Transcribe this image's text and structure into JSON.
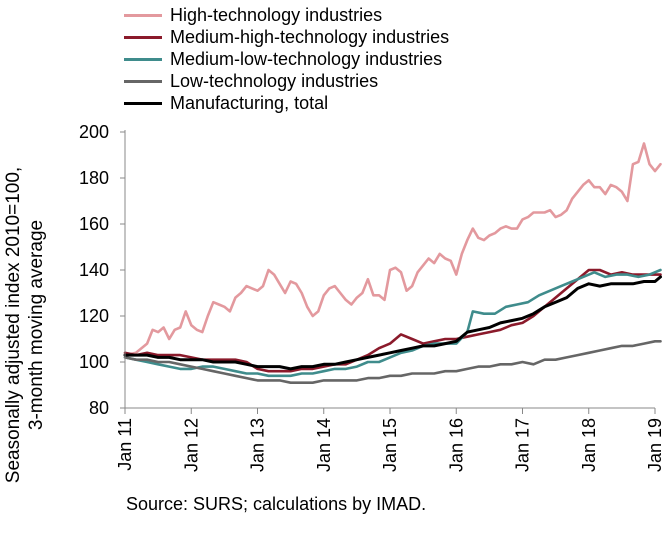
{
  "source": "Source: SURS; calculations by IMAD.",
  "chart_data": {
    "type": "line",
    "ylabel_line1": "Seasonally adjusted index 2010=100,",
    "ylabel_line2": "3-month moving average",
    "ylim": [
      80,
      200
    ],
    "yticks": [
      80,
      100,
      120,
      140,
      160,
      180,
      200
    ],
    "xticks": [
      "Jan 11",
      "Jan 12",
      "Jan 13",
      "Jan 14",
      "Jan 15",
      "Jan 16",
      "Jan 17",
      "Jan 18",
      "Jan 19"
    ],
    "x_start": "Jan 11",
    "x_end": "Jan 19",
    "frequency": "monthly",
    "legend_position": "top-left",
    "series": [
      {
        "name": "High-technology industries",
        "color": "#e3999e",
        "values": [
          [
            0,
            103
          ],
          [
            2,
            104
          ],
          [
            4,
            108
          ],
          [
            5,
            114
          ],
          [
            6,
            113
          ],
          [
            7,
            115
          ],
          [
            8,
            110
          ],
          [
            9,
            114
          ],
          [
            10,
            115
          ],
          [
            11,
            122
          ],
          [
            12,
            116
          ],
          [
            13,
            114
          ],
          [
            14,
            113
          ],
          [
            15,
            120
          ],
          [
            16,
            126
          ],
          [
            17,
            125
          ],
          [
            18,
            124
          ],
          [
            19,
            122
          ],
          [
            20,
            128
          ],
          [
            21,
            130
          ],
          [
            22,
            133
          ],
          [
            23,
            132
          ],
          [
            24,
            131
          ],
          [
            25,
            133
          ],
          [
            26,
            140
          ],
          [
            27,
            138
          ],
          [
            28,
            134
          ],
          [
            29,
            130
          ],
          [
            30,
            135
          ],
          [
            31,
            134
          ],
          [
            32,
            130
          ],
          [
            33,
            124
          ],
          [
            34,
            120
          ],
          [
            35,
            122
          ],
          [
            36,
            129
          ],
          [
            37,
            132
          ],
          [
            38,
            133
          ],
          [
            39,
            130
          ],
          [
            40,
            127
          ],
          [
            41,
            125
          ],
          [
            42,
            128
          ],
          [
            43,
            130
          ],
          [
            44,
            136
          ],
          [
            45,
            129
          ],
          [
            46,
            129
          ],
          [
            47,
            127
          ],
          [
            48,
            140
          ],
          [
            49,
            141
          ],
          [
            50,
            139
          ],
          [
            51,
            131
          ],
          [
            52,
            133
          ],
          [
            53,
            139
          ],
          [
            54,
            142
          ],
          [
            55,
            145
          ],
          [
            56,
            143
          ],
          [
            57,
            147
          ],
          [
            58,
            145
          ],
          [
            59,
            144
          ],
          [
            60,
            138
          ],
          [
            61,
            147
          ],
          [
            62,
            153
          ],
          [
            63,
            158
          ],
          [
            64,
            154
          ],
          [
            65,
            153
          ],
          [
            66,
            155
          ],
          [
            67,
            156
          ],
          [
            68,
            158
          ],
          [
            69,
            159
          ],
          [
            70,
            158
          ],
          [
            71,
            158
          ],
          [
            72,
            162
          ],
          [
            73,
            163
          ],
          [
            74,
            165
          ],
          [
            75,
            165
          ],
          [
            76,
            165
          ],
          [
            77,
            166
          ],
          [
            78,
            163
          ],
          [
            79,
            164
          ],
          [
            80,
            166
          ],
          [
            81,
            171
          ],
          [
            82,
            174
          ],
          [
            83,
            177
          ],
          [
            84,
            179
          ],
          [
            85,
            176
          ],
          [
            86,
            176
          ],
          [
            87,
            173
          ],
          [
            88,
            177
          ],
          [
            89,
            176
          ],
          [
            90,
            174
          ],
          [
            91,
            170
          ],
          [
            92,
            186
          ],
          [
            93,
            187
          ],
          [
            94,
            195
          ],
          [
            95,
            186
          ],
          [
            96,
            183
          ],
          [
            97,
            186
          ]
        ]
      },
      {
        "name": "Medium-high-technology industries",
        "color": "#8b1a2b",
        "values": [
          [
            0,
            104
          ],
          [
            2,
            103
          ],
          [
            4,
            104
          ],
          [
            6,
            103
          ],
          [
            8,
            103
          ],
          [
            10,
            103
          ],
          [
            12,
            102
          ],
          [
            14,
            101
          ],
          [
            16,
            101
          ],
          [
            18,
            101
          ],
          [
            20,
            101
          ],
          [
            22,
            100
          ],
          [
            24,
            97
          ],
          [
            26,
            96
          ],
          [
            28,
            96
          ],
          [
            30,
            96
          ],
          [
            32,
            97
          ],
          [
            34,
            97
          ],
          [
            36,
            98
          ],
          [
            38,
            99
          ],
          [
            40,
            99
          ],
          [
            42,
            101
          ],
          [
            44,
            103
          ],
          [
            46,
            106
          ],
          [
            48,
            108
          ],
          [
            50,
            112
          ],
          [
            52,
            110
          ],
          [
            54,
            108
          ],
          [
            56,
            109
          ],
          [
            58,
            110
          ],
          [
            60,
            110
          ],
          [
            62,
            111
          ],
          [
            64,
            112
          ],
          [
            66,
            113
          ],
          [
            68,
            114
          ],
          [
            70,
            116
          ],
          [
            72,
            117
          ],
          [
            74,
            120
          ],
          [
            76,
            124
          ],
          [
            78,
            128
          ],
          [
            80,
            132
          ],
          [
            82,
            136
          ],
          [
            84,
            140
          ],
          [
            86,
            140
          ],
          [
            88,
            138
          ],
          [
            90,
            139
          ],
          [
            92,
            138
          ],
          [
            94,
            138
          ],
          [
            96,
            138
          ],
          [
            97,
            138
          ]
        ]
      },
      {
        "name": "Medium-low-technology industries",
        "color": "#3f8c8c",
        "values": [
          [
            0,
            102
          ],
          [
            2,
            101
          ],
          [
            4,
            100
          ],
          [
            6,
            99
          ],
          [
            8,
            98
          ],
          [
            10,
            97
          ],
          [
            12,
            97
          ],
          [
            14,
            98
          ],
          [
            16,
            98
          ],
          [
            18,
            97
          ],
          [
            20,
            96
          ],
          [
            22,
            95
          ],
          [
            24,
            95
          ],
          [
            26,
            94
          ],
          [
            28,
            94
          ],
          [
            30,
            94
          ],
          [
            32,
            95
          ],
          [
            34,
            95
          ],
          [
            36,
            96
          ],
          [
            38,
            97
          ],
          [
            40,
            97
          ],
          [
            42,
            98
          ],
          [
            44,
            100
          ],
          [
            46,
            100
          ],
          [
            48,
            102
          ],
          [
            50,
            104
          ],
          [
            52,
            105
          ],
          [
            54,
            107
          ],
          [
            56,
            108
          ],
          [
            58,
            108
          ],
          [
            60,
            108
          ],
          [
            62,
            113
          ],
          [
            63,
            122
          ],
          [
            65,
            121
          ],
          [
            67,
            121
          ],
          [
            69,
            124
          ],
          [
            71,
            125
          ],
          [
            73,
            126
          ],
          [
            75,
            129
          ],
          [
            77,
            131
          ],
          [
            79,
            133
          ],
          [
            81,
            135
          ],
          [
            83,
            137
          ],
          [
            85,
            139
          ],
          [
            87,
            137
          ],
          [
            89,
            138
          ],
          [
            91,
            138
          ],
          [
            93,
            137
          ],
          [
            95,
            138
          ],
          [
            97,
            140
          ]
        ]
      },
      {
        "name": "Low-technology industries",
        "color": "#666666",
        "values": [
          [
            0,
            102
          ],
          [
            2,
            101
          ],
          [
            4,
            101
          ],
          [
            6,
            100
          ],
          [
            8,
            100
          ],
          [
            10,
            99
          ],
          [
            12,
            98
          ],
          [
            14,
            97
          ],
          [
            16,
            96
          ],
          [
            18,
            95
          ],
          [
            20,
            94
          ],
          [
            22,
            93
          ],
          [
            24,
            92
          ],
          [
            26,
            92
          ],
          [
            28,
            92
          ],
          [
            30,
            91
          ],
          [
            32,
            91
          ],
          [
            34,
            91
          ],
          [
            36,
            92
          ],
          [
            38,
            92
          ],
          [
            40,
            92
          ],
          [
            42,
            92
          ],
          [
            44,
            93
          ],
          [
            46,
            93
          ],
          [
            48,
            94
          ],
          [
            50,
            94
          ],
          [
            52,
            95
          ],
          [
            54,
            95
          ],
          [
            56,
            95
          ],
          [
            58,
            96
          ],
          [
            60,
            96
          ],
          [
            62,
            97
          ],
          [
            64,
            98
          ],
          [
            66,
            98
          ],
          [
            68,
            99
          ],
          [
            70,
            99
          ],
          [
            72,
            100
          ],
          [
            74,
            99
          ],
          [
            76,
            101
          ],
          [
            78,
            101
          ],
          [
            80,
            102
          ],
          [
            82,
            103
          ],
          [
            84,
            104
          ],
          [
            86,
            105
          ],
          [
            88,
            106
          ],
          [
            90,
            107
          ],
          [
            92,
            107
          ],
          [
            94,
            108
          ],
          [
            96,
            109
          ],
          [
            97,
            109
          ]
        ]
      },
      {
        "name": "Manufacturing, total",
        "color": "#000000",
        "values": [
          [
            0,
            103
          ],
          [
            2,
            103
          ],
          [
            4,
            103
          ],
          [
            6,
            102
          ],
          [
            8,
            102
          ],
          [
            10,
            101
          ],
          [
            12,
            101
          ],
          [
            14,
            101
          ],
          [
            16,
            100
          ],
          [
            18,
            100
          ],
          [
            20,
            100
          ],
          [
            22,
            99
          ],
          [
            24,
            98
          ],
          [
            26,
            98
          ],
          [
            28,
            98
          ],
          [
            30,
            97
          ],
          [
            32,
            98
          ],
          [
            34,
            98
          ],
          [
            36,
            99
          ],
          [
            38,
            99
          ],
          [
            40,
            100
          ],
          [
            42,
            101
          ],
          [
            44,
            102
          ],
          [
            46,
            103
          ],
          [
            48,
            104
          ],
          [
            50,
            105
          ],
          [
            52,
            106
          ],
          [
            54,
            107
          ],
          [
            56,
            107
          ],
          [
            58,
            108
          ],
          [
            60,
            109
          ],
          [
            62,
            113
          ],
          [
            64,
            114
          ],
          [
            66,
            115
          ],
          [
            68,
            117
          ],
          [
            70,
            118
          ],
          [
            72,
            119
          ],
          [
            74,
            121
          ],
          [
            76,
            124
          ],
          [
            78,
            126
          ],
          [
            80,
            128
          ],
          [
            82,
            132
          ],
          [
            84,
            134
          ],
          [
            86,
            133
          ],
          [
            88,
            134
          ],
          [
            90,
            134
          ],
          [
            92,
            134
          ],
          [
            94,
            135
          ],
          [
            96,
            135
          ],
          [
            97,
            137
          ]
        ]
      }
    ]
  }
}
